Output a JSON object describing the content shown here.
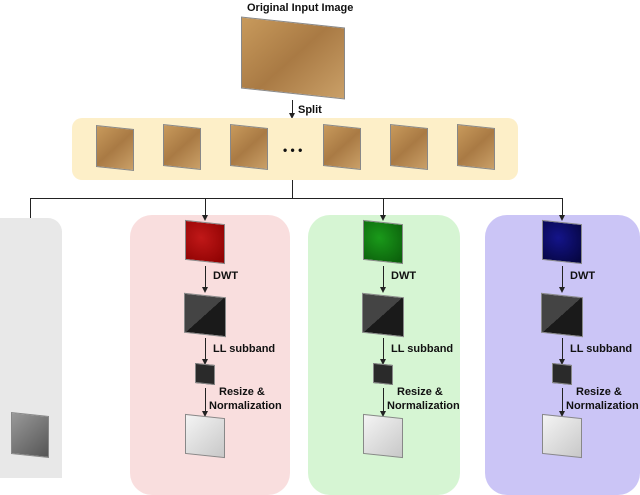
{
  "title": "Original Input Image",
  "split_label": "Split",
  "ellipsis": "• • •",
  "branches": [
    {
      "color": "#f9dede",
      "channel": "red",
      "dwt_label": "DWT",
      "ll_label": "LL subband",
      "resize_label": "Resize &",
      "norm_label": "Normalization"
    },
    {
      "color": "#d6f5d3",
      "channel": "green",
      "dwt_label": "DWT",
      "ll_label": "LL subband",
      "resize_label": "Resize &",
      "norm_label": "Normalization"
    },
    {
      "color": "#cbc5f6",
      "channel": "blue",
      "dwt_label": "DWT",
      "ll_label": "LL subband",
      "resize_label": "Resize &",
      "norm_label": "Normalization"
    }
  ],
  "gray_branch_color": "#e8e8e8",
  "split_band_color": "#fdefc8"
}
